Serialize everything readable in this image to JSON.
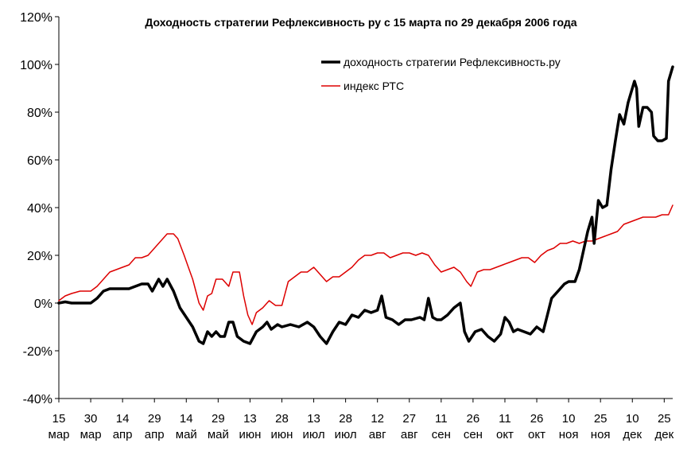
{
  "chart_data": {
    "type": "line",
    "title": "Доходность стратегии Рефлексивность ру с 15 марта по 29 декабря 2006 года",
    "xlabel": "",
    "ylabel": "",
    "ylim": [
      -40,
      120
    ],
    "y_ticks": [
      "120%",
      "100%",
      "80%",
      "60%",
      "40%",
      "20%",
      "0%",
      "-20%",
      "-40%"
    ],
    "y_tick_values": [
      120,
      100,
      80,
      60,
      40,
      20,
      0,
      -20,
      -40
    ],
    "x_ticks": [
      {
        "day": "15",
        "month": "мар"
      },
      {
        "day": "30",
        "month": "мар"
      },
      {
        "day": "14",
        "month": "апр"
      },
      {
        "day": "29",
        "month": "апр"
      },
      {
        "day": "14",
        "month": "май"
      },
      {
        "day": "29",
        "month": "май"
      },
      {
        "day": "13",
        "month": "июн"
      },
      {
        "day": "28",
        "month": "июн"
      },
      {
        "day": "13",
        "month": "июл"
      },
      {
        "day": "28",
        "month": "июл"
      },
      {
        "day": "12",
        "month": "авг"
      },
      {
        "day": "27",
        "month": "авг"
      },
      {
        "day": "11",
        "month": "сен"
      },
      {
        "day": "26",
        "month": "сен"
      },
      {
        "day": "11",
        "month": "окт"
      },
      {
        "day": "26",
        "month": "окт"
      },
      {
        "day": "10",
        "month": "ноя"
      },
      {
        "day": "25",
        "month": "ноя"
      },
      {
        "day": "10",
        "month": "дек"
      },
      {
        "day": "25",
        "month": "дек"
      }
    ],
    "x_range": [
      "2006-03-15",
      "2006-12-29"
    ],
    "grid": false,
    "legend_position": "top-right",
    "series": [
      {
        "name": "доходность стратегии Рефлексивность.ру",
        "color": "#000000",
        "points": [
          [
            "2006-03-15",
            0
          ],
          [
            "2006-03-18",
            0.5
          ],
          [
            "2006-03-21",
            0
          ],
          [
            "2006-03-25",
            0
          ],
          [
            "2006-03-30",
            0
          ],
          [
            "2006-04-02",
            2
          ],
          [
            "2006-04-05",
            5
          ],
          [
            "2006-04-08",
            6
          ],
          [
            "2006-04-11",
            6
          ],
          [
            "2006-04-14",
            6
          ],
          [
            "2006-04-17",
            6
          ],
          [
            "2006-04-20",
            7
          ],
          [
            "2006-04-23",
            8
          ],
          [
            "2006-04-26",
            8
          ],
          [
            "2006-04-28",
            5
          ],
          [
            "2006-05-01",
            10
          ],
          [
            "2006-05-03",
            7
          ],
          [
            "2006-05-05",
            10
          ],
          [
            "2006-05-08",
            5
          ],
          [
            "2006-05-11",
            -2
          ],
          [
            "2006-05-14",
            -6
          ],
          [
            "2006-05-17",
            -10
          ],
          [
            "2006-05-20",
            -16
          ],
          [
            "2006-05-22",
            -17
          ],
          [
            "2006-05-24",
            -12
          ],
          [
            "2006-05-26",
            -14
          ],
          [
            "2006-05-28",
            -12
          ],
          [
            "2006-05-30",
            -14
          ],
          [
            "2006-06-01",
            -14
          ],
          [
            "2006-06-03",
            -8
          ],
          [
            "2006-06-05",
            -8
          ],
          [
            "2006-06-07",
            -14
          ],
          [
            "2006-06-10",
            -16
          ],
          [
            "2006-06-13",
            -17
          ],
          [
            "2006-06-16",
            -12
          ],
          [
            "2006-06-19",
            -10
          ],
          [
            "2006-06-21",
            -8
          ],
          [
            "2006-06-23",
            -11
          ],
          [
            "2006-06-26",
            -9
          ],
          [
            "2006-06-28",
            -10
          ],
          [
            "2006-07-02",
            -9
          ],
          [
            "2006-07-06",
            -10
          ],
          [
            "2006-07-10",
            -8
          ],
          [
            "2006-07-13",
            -10
          ],
          [
            "2006-07-16",
            -14
          ],
          [
            "2006-07-19",
            -17
          ],
          [
            "2006-07-22",
            -12
          ],
          [
            "2006-07-25",
            -8
          ],
          [
            "2006-07-28",
            -9
          ],
          [
            "2006-07-31",
            -5
          ],
          [
            "2006-08-03",
            -6
          ],
          [
            "2006-08-06",
            -3
          ],
          [
            "2006-08-09",
            -4
          ],
          [
            "2006-08-12",
            -3
          ],
          [
            "2006-08-14",
            3
          ],
          [
            "2006-08-16",
            -6
          ],
          [
            "2006-08-19",
            -7
          ],
          [
            "2006-08-22",
            -9
          ],
          [
            "2006-08-25",
            -7
          ],
          [
            "2006-08-28",
            -7
          ],
          [
            "2006-09-01",
            -6
          ],
          [
            "2006-09-03",
            -7
          ],
          [
            "2006-09-05",
            2
          ],
          [
            "2006-09-07",
            -6
          ],
          [
            "2006-09-09",
            -7
          ],
          [
            "2006-09-11",
            -7
          ],
          [
            "2006-09-14",
            -5
          ],
          [
            "2006-09-17",
            -2
          ],
          [
            "2006-09-20",
            0
          ],
          [
            "2006-09-22",
            -12
          ],
          [
            "2006-09-24",
            -16
          ],
          [
            "2006-09-27",
            -12
          ],
          [
            "2006-09-30",
            -11
          ],
          [
            "2006-10-03",
            -14
          ],
          [
            "2006-10-06",
            -16
          ],
          [
            "2006-10-09",
            -13
          ],
          [
            "2006-10-11",
            -6
          ],
          [
            "2006-10-13",
            -8
          ],
          [
            "2006-10-15",
            -12
          ],
          [
            "2006-10-17",
            -11
          ],
          [
            "2006-10-20",
            -12
          ],
          [
            "2006-10-23",
            -13
          ],
          [
            "2006-10-26",
            -10
          ],
          [
            "2006-10-29",
            -12
          ],
          [
            "2006-10-31",
            -5
          ],
          [
            "2006-11-02",
            2
          ],
          [
            "2006-11-05",
            5
          ],
          [
            "2006-11-08",
            8
          ],
          [
            "2006-11-10",
            9
          ],
          [
            "2006-11-13",
            9
          ],
          [
            "2006-11-15",
            14
          ],
          [
            "2006-11-17",
            22
          ],
          [
            "2006-11-19",
            30
          ],
          [
            "2006-11-21",
            36
          ],
          [
            "2006-11-22",
            25
          ],
          [
            "2006-11-24",
            43
          ],
          [
            "2006-11-26",
            40
          ],
          [
            "2006-11-28",
            41
          ],
          [
            "2006-11-30",
            56
          ],
          [
            "2006-12-02",
            68
          ],
          [
            "2006-12-04",
            79
          ],
          [
            "2006-12-06",
            75
          ],
          [
            "2006-12-08",
            84
          ],
          [
            "2006-12-11",
            93
          ],
          [
            "2006-12-12",
            90
          ],
          [
            "2006-12-13",
            74
          ],
          [
            "2006-12-15",
            82
          ],
          [
            "2006-12-17",
            82
          ],
          [
            "2006-12-19",
            80
          ],
          [
            "2006-12-20",
            70
          ],
          [
            "2006-12-22",
            68
          ],
          [
            "2006-12-24",
            68
          ],
          [
            "2006-12-26",
            69
          ],
          [
            "2006-12-27",
            93
          ],
          [
            "2006-12-29",
            99
          ]
        ]
      },
      {
        "name": "индекс РТС",
        "color": "#dd0000",
        "points": [
          [
            "2006-03-15",
            1
          ],
          [
            "2006-03-18",
            3
          ],
          [
            "2006-03-21",
            4
          ],
          [
            "2006-03-25",
            5
          ],
          [
            "2006-03-30",
            5
          ],
          [
            "2006-04-02",
            7
          ],
          [
            "2006-04-05",
            10
          ],
          [
            "2006-04-08",
            13
          ],
          [
            "2006-04-11",
            14
          ],
          [
            "2006-04-14",
            15
          ],
          [
            "2006-04-17",
            16
          ],
          [
            "2006-04-20",
            19
          ],
          [
            "2006-04-23",
            19
          ],
          [
            "2006-04-26",
            20
          ],
          [
            "2006-04-29",
            23
          ],
          [
            "2006-05-02",
            26
          ],
          [
            "2006-05-05",
            29
          ],
          [
            "2006-05-08",
            29
          ],
          [
            "2006-05-10",
            27
          ],
          [
            "2006-05-13",
            20
          ],
          [
            "2006-05-15",
            15
          ],
          [
            "2006-05-17",
            10
          ],
          [
            "2006-05-20",
            0
          ],
          [
            "2006-05-22",
            -3
          ],
          [
            "2006-05-24",
            3
          ],
          [
            "2006-05-26",
            4
          ],
          [
            "2006-05-28",
            10
          ],
          [
            "2006-05-31",
            10
          ],
          [
            "2006-06-03",
            7
          ],
          [
            "2006-06-05",
            13
          ],
          [
            "2006-06-08",
            13
          ],
          [
            "2006-06-10",
            3
          ],
          [
            "2006-06-12",
            -5
          ],
          [
            "2006-06-14",
            -9
          ],
          [
            "2006-06-16",
            -4
          ],
          [
            "2006-06-19",
            -2
          ],
          [
            "2006-06-22",
            1
          ],
          [
            "2006-06-25",
            -1
          ],
          [
            "2006-06-28",
            -1
          ],
          [
            "2006-07-01",
            9
          ],
          [
            "2006-07-04",
            11
          ],
          [
            "2006-07-07",
            13
          ],
          [
            "2006-07-10",
            13
          ],
          [
            "2006-07-13",
            15
          ],
          [
            "2006-07-16",
            12
          ],
          [
            "2006-07-19",
            9
          ],
          [
            "2006-07-22",
            11
          ],
          [
            "2006-07-25",
            11
          ],
          [
            "2006-07-28",
            13
          ],
          [
            "2006-07-31",
            15
          ],
          [
            "2006-08-03",
            18
          ],
          [
            "2006-08-06",
            20
          ],
          [
            "2006-08-09",
            20
          ],
          [
            "2006-08-12",
            21
          ],
          [
            "2006-08-15",
            21
          ],
          [
            "2006-08-18",
            19
          ],
          [
            "2006-08-21",
            20
          ],
          [
            "2006-08-24",
            21
          ],
          [
            "2006-08-27",
            21
          ],
          [
            "2006-08-30",
            20
          ],
          [
            "2006-09-02",
            21
          ],
          [
            "2006-09-05",
            20
          ],
          [
            "2006-09-08",
            16
          ],
          [
            "2006-09-11",
            13
          ],
          [
            "2006-09-14",
            14
          ],
          [
            "2006-09-17",
            15
          ],
          [
            "2006-09-20",
            13
          ],
          [
            "2006-09-23",
            9
          ],
          [
            "2006-09-25",
            7
          ],
          [
            "2006-09-28",
            13
          ],
          [
            "2006-10-01",
            14
          ],
          [
            "2006-10-04",
            14
          ],
          [
            "2006-10-07",
            15
          ],
          [
            "2006-10-10",
            16
          ],
          [
            "2006-10-13",
            17
          ],
          [
            "2006-10-16",
            18
          ],
          [
            "2006-10-19",
            19
          ],
          [
            "2006-10-22",
            19
          ],
          [
            "2006-10-25",
            17
          ],
          [
            "2006-10-28",
            20
          ],
          [
            "2006-10-31",
            22
          ],
          [
            "2006-11-03",
            23
          ],
          [
            "2006-11-06",
            25
          ],
          [
            "2006-11-09",
            25
          ],
          [
            "2006-11-12",
            26
          ],
          [
            "2006-11-15",
            25
          ],
          [
            "2006-11-18",
            26
          ],
          [
            "2006-11-21",
            26
          ],
          [
            "2006-11-24",
            27
          ],
          [
            "2006-11-27",
            28
          ],
          [
            "2006-11-30",
            29
          ],
          [
            "2006-12-03",
            30
          ],
          [
            "2006-12-06",
            33
          ],
          [
            "2006-12-09",
            34
          ],
          [
            "2006-12-12",
            35
          ],
          [
            "2006-12-15",
            36
          ],
          [
            "2006-12-18",
            36
          ],
          [
            "2006-12-21",
            36
          ],
          [
            "2006-12-24",
            37
          ],
          [
            "2006-12-27",
            37
          ],
          [
            "2006-12-29",
            41
          ]
        ]
      }
    ]
  }
}
